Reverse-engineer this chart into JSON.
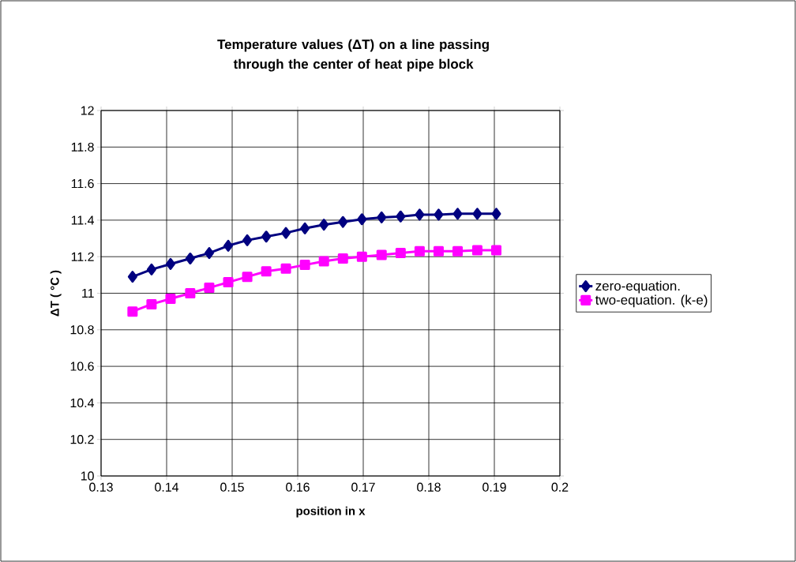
{
  "chart_data": {
    "type": "line",
    "title": "Temperature values (ΔT) on a line passing through the center of heat pipe block",
    "xlabel": "position in x",
    "ylabel": "ΔT ( °C )",
    "x": [
      0.1348,
      0.1377,
      0.1406,
      0.1436,
      0.1465,
      0.1494,
      0.1523,
      0.1552,
      0.1582,
      0.1611,
      0.164,
      0.1669,
      0.1698,
      0.1728,
      0.1757,
      0.1786,
      0.1815,
      0.1844,
      0.1874,
      0.1903
    ],
    "series": [
      {
        "name": "zero-equation.",
        "color": "#000080",
        "marker": "diamond",
        "values": [
          11.09,
          11.13,
          11.16,
          11.19,
          11.22,
          11.26,
          11.29,
          11.31,
          11.33,
          11.355,
          11.375,
          11.39,
          11.405,
          11.415,
          11.42,
          11.43,
          11.43,
          11.435,
          11.435,
          11.435
        ]
      },
      {
        "name": "two-equation. (k-e)",
        "color": "#ff00ff",
        "marker": "square",
        "values": [
          10.9,
          10.94,
          10.97,
          11.0,
          11.03,
          11.06,
          11.09,
          11.12,
          11.135,
          11.155,
          11.175,
          11.19,
          11.2,
          11.21,
          11.22,
          11.23,
          11.23,
          11.23,
          11.235,
          11.235
        ]
      }
    ],
    "xlim": [
      0.13,
      0.2
    ],
    "xticks": [
      0.13,
      0.14,
      0.15,
      0.16,
      0.17,
      0.18,
      0.19,
      0.2
    ],
    "ylim": [
      10,
      12
    ],
    "yticks": [
      10,
      10.2,
      10.4,
      10.6,
      10.8,
      11,
      11.2,
      11.4,
      11.6,
      11.8,
      12
    ],
    "grid": true,
    "legend": "right",
    "line_style": "solid"
  }
}
